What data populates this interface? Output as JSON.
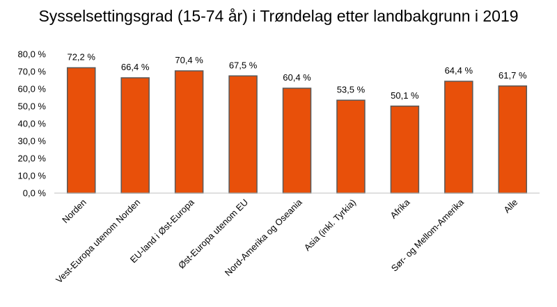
{
  "chart_data": {
    "type": "bar",
    "title": "Sysselsettingsgrad (15-74 år) i Trøndelag etter landbakgrunn i 2019",
    "categories": [
      "Norden",
      "Vest-Europa utenom Norden",
      "EU-land i Øst-Europa",
      "Øst-Europa utenom EU",
      "Nord-Amerika og Oseania",
      "Asia (inkl. Tyrkia)",
      "Afrika",
      "Sør- og Mellom-Amerika",
      "Alle"
    ],
    "values": [
      72.2,
      66.4,
      70.4,
      67.5,
      60.4,
      53.5,
      50.1,
      64.4,
      61.7
    ],
    "data_labels": [
      "72,2 %",
      "66,4 %",
      "70,4 %",
      "67,5 %",
      "60,4 %",
      "53,5 %",
      "50,1 %",
      "64,4 %",
      "61,7 %"
    ],
    "ylim": [
      0,
      80
    ],
    "y_ticks": [
      "0,0 %",
      "10,0 %",
      "20,0 %",
      "30,0 %",
      "40,0 %",
      "50,0 %",
      "60,0 %",
      "70,0 %",
      "80,0 %"
    ],
    "xlabel": "",
    "ylabel": "",
    "grid": false,
    "legend": "none",
    "bar_color": "#E8500A",
    "bar_edge_color": "#595959"
  }
}
